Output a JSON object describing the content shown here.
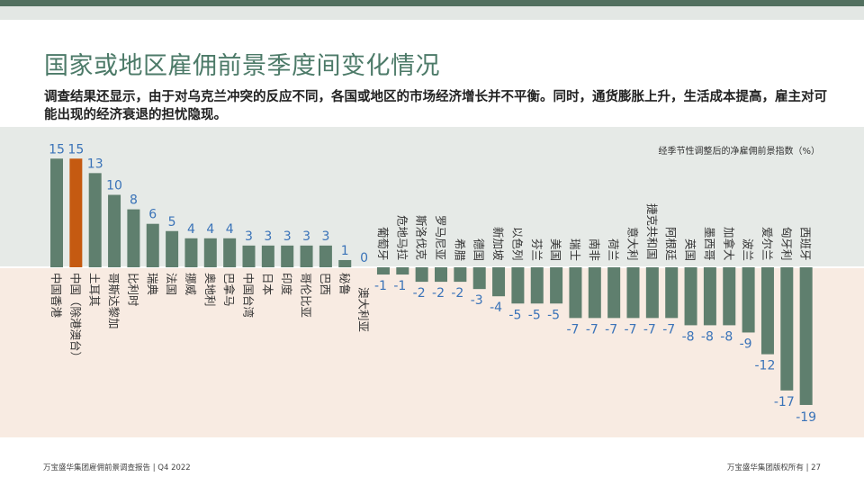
{
  "header": {
    "title": "国家或地区雇佣前景季度间变化情况",
    "subtitle": "调查结果还显示，由于对乌克兰冲突的反应不同，各国或地区的市场经济增长并不平衡。同时，通货膨胀上升，生活成本提高，雇主对可能出现的经济衰退的担忧隐现。"
  },
  "footer": {
    "left": "万宝盛华集团雇佣前景调查报告 |  Q4 2022",
    "right": "万宝盛华集团版权所有 |  27"
  },
  "colors": {
    "bar": "#5f7f6e",
    "highlight": "#c55a11",
    "value_label": "#3a73b8",
    "positive_bg": "#e6eae7",
    "negative_bg": "#f8ebe2"
  },
  "chart_data": {
    "type": "bar",
    "title": "国家或地区雇佣前景季度间变化情况",
    "ylabel": "经季节性调整后的净雇佣前景指数（%）",
    "ylim": [
      -19,
      15
    ],
    "highlight_category": "中国（除港澳台）",
    "categories": [
      "中国香港",
      "中国（除港澳台）",
      "土耳其",
      "哥斯达黎加",
      "比利时",
      "瑞典",
      "法国",
      "挪威",
      "奥地利",
      "巴拿马",
      "中国台湾",
      "日本",
      "印度",
      "哥伦比亚",
      "巴西",
      "秘鲁",
      "澳大利亚",
      "葡萄牙",
      "危地马拉",
      "斯洛伐克",
      "罗马尼亚",
      "希腊",
      "德国",
      "新加坡",
      "以色列",
      "芬兰",
      "美国",
      "瑞士",
      "南非",
      "荷兰",
      "意大利",
      "捷克共和国",
      "阿根廷",
      "英国",
      "墨西哥",
      "加拿大",
      "波兰",
      "爱尔兰",
      "匈牙利",
      "西班牙"
    ],
    "values": [
      15,
      15,
      13,
      10,
      8,
      6,
      5,
      4,
      4,
      4,
      3,
      3,
      3,
      3,
      3,
      1,
      0,
      -1,
      -1,
      -2,
      -2,
      -2,
      -3,
      -4,
      -5,
      -5,
      -5,
      -7,
      -7,
      -7,
      -7,
      -7,
      -7,
      -8,
      -8,
      -8,
      -9,
      -12,
      -17,
      -19
    ]
  }
}
